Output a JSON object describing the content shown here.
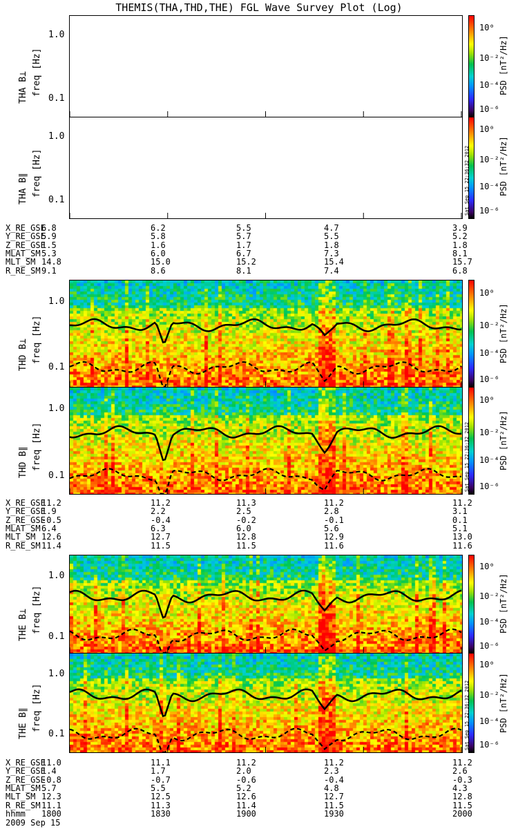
{
  "title": "THEMIS(THA,THD,THE) FGL Wave Survey Plot (Log)",
  "colors": {
    "line": "#000000",
    "frame": "#000000"
  },
  "colorbar": {
    "label": "PSD [nT²/Hz]",
    "ticks": [
      "10⁰",
      "10⁻²",
      "10⁻⁴",
      "10⁻⁶"
    ]
  },
  "freq_axis": {
    "label": "freq [Hz]",
    "ticks": [
      "1.0",
      "0.1"
    ]
  },
  "stamp": "Sat Sep 15 22:36:32 2012",
  "date": "2009 Sep 15",
  "ephem_groups": [
    {
      "rows": [
        {
          "label": "X_RE_GSE",
          "values": [
            "6.8",
            "6.2",
            "5.5",
            "4.7",
            "3.9"
          ]
        },
        {
          "label": "Y_RE_GSE",
          "values": [
            "5.9",
            "5.8",
            "5.7",
            "5.5",
            "5.2"
          ]
        },
        {
          "label": "Z_RE_GSE",
          "values": [
            "1.5",
            "1.6",
            "1.7",
            "1.8",
            "1.8"
          ]
        },
        {
          "label": "MLAT_SM",
          "values": [
            "5.3",
            "6.0",
            "6.7",
            "7.3",
            "8.1"
          ]
        },
        {
          "label": "MLT_SM",
          "values": [
            "14.8",
            "15.0",
            "15.2",
            "15.4",
            "15.7"
          ]
        },
        {
          "label": "R_RE_SM",
          "values": [
            "9.1",
            "8.6",
            "8.1",
            "7.4",
            "6.8"
          ]
        }
      ]
    },
    {
      "rows": [
        {
          "label": "X_RE_GSE",
          "values": [
            "11.2",
            "11.2",
            "11.3",
            "11.2",
            "11.2"
          ]
        },
        {
          "label": "Y_RE_GSE",
          "values": [
            "1.9",
            "2.2",
            "2.5",
            "2.8",
            "3.1"
          ]
        },
        {
          "label": "Z_RE_GSE",
          "values": [
            "-0.5",
            "-0.4",
            "-0.2",
            "-0.1",
            "0.1"
          ]
        },
        {
          "label": "MLAT_SM",
          "values": [
            "6.4",
            "6.3",
            "6.0",
            "5.6",
            "5.1"
          ]
        },
        {
          "label": "MLT_SM",
          "values": [
            "12.6",
            "12.7",
            "12.8",
            "12.9",
            "13.0"
          ]
        },
        {
          "label": "R_RE_SM",
          "values": [
            "11.4",
            "11.5",
            "11.5",
            "11.6",
            "11.6"
          ]
        }
      ]
    },
    {
      "rows": [
        {
          "label": "X_RE_GSE",
          "values": [
            "11.0",
            "11.1",
            "11.2",
            "11.2",
            "11.2"
          ]
        },
        {
          "label": "Y_RE_GSE",
          "values": [
            "1.4",
            "1.7",
            "2.0",
            "2.3",
            "2.6"
          ]
        },
        {
          "label": "Z_RE_GSE",
          "values": [
            "-0.8",
            "-0.7",
            "-0.6",
            "-0.4",
            "-0.3"
          ]
        },
        {
          "label": "MLAT_SM",
          "values": [
            "5.7",
            "5.5",
            "5.2",
            "4.8",
            "4.3"
          ]
        },
        {
          "label": "MLT_SM",
          "values": [
            "12.3",
            "12.5",
            "12.6",
            "12.7",
            "12.8"
          ]
        },
        {
          "label": "R_RE_SM",
          "values": [
            "11.1",
            "11.3",
            "11.4",
            "11.5",
            "11.5"
          ]
        },
        {
          "label": "hhmm",
          "values": [
            "1800",
            "1830",
            "1900",
            "1930",
            "2000"
          ]
        }
      ]
    }
  ],
  "chart_data": {
    "type": "heatmap",
    "xlim": [
      "1800",
      "2000"
    ],
    "x_ticks": [
      "1800",
      "1830",
      "1900",
      "1930",
      "2000"
    ],
    "ylim": [
      0.05,
      1.6
    ],
    "yscale": "log",
    "panels": [
      {
        "name": "THA B⊥",
        "ylabel": "THA B⊥",
        "has_data": false
      },
      {
        "name": "THA B∥",
        "ylabel": "THA B∥",
        "has_data": false
      },
      {
        "name": "THD B⊥",
        "ylabel": "THD B⊥",
        "has_data": true
      },
      {
        "name": "THD B∥",
        "ylabel": "THD B∥",
        "has_data": true
      },
      {
        "name": "THE B⊥",
        "ylabel": "THE B⊥",
        "has_data": true
      },
      {
        "name": "THE B∥",
        "ylabel": "THE B∥",
        "has_data": true
      }
    ]
  }
}
